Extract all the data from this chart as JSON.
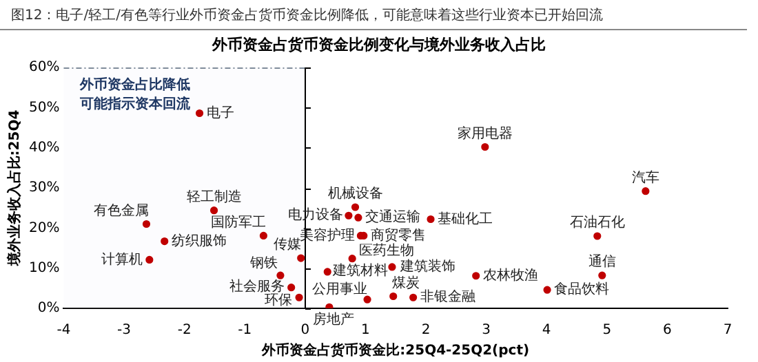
{
  "chart_data": {
    "type": "scatter",
    "title": "图12：电子/轻工/有色等行业外币资金占货币资金比例降低，可能意味着这些行业资本已开始回流",
    "subtitle": "外币资金占货币资金比例变化与境外业务收入占比",
    "xlabel": "外币资金占货币资金比:25Q4-25Q2(pct)",
    "ylabel": "境外业务收入占比:25Q4",
    "xlim": [
      -4,
      7
    ],
    "xticks": [
      -4,
      -3,
      -2,
      -1,
      0,
      1,
      2,
      3,
      4,
      5,
      6,
      7
    ],
    "ylim": [
      0,
      60
    ],
    "yticks": [
      {
        "value": 0,
        "label": "0%"
      },
      {
        "value": 10,
        "label": "10%"
      },
      {
        "value": 20,
        "label": "20%"
      },
      {
        "value": 30,
        "label": "30%"
      },
      {
        "value": 40,
        "label": "40%"
      },
      {
        "value": 50,
        "label": "50%"
      },
      {
        "value": 60,
        "label": "60%"
      }
    ],
    "grid": false,
    "legend": false,
    "marker": "circle",
    "series": [
      {
        "color": "#c00000",
        "x": [
          -1.75,
          -2.63,
          -2.33,
          -2.58,
          -1.51,
          -0.69,
          -0.07,
          -0.41,
          -0.23,
          -0.1,
          0.4,
          0.83,
          0.72,
          0.88,
          0.92,
          0.97,
          0.37,
          0.78,
          2.08,
          1.44,
          1.03,
          1.46,
          1.79,
          2.83,
          4.01,
          2.98,
          5.64,
          4.84,
          4.92
        ],
        "values": [
          48.6,
          21.0,
          16.7,
          12.1,
          24.4,
          18.1,
          12.5,
          8.2,
          5.2,
          2.7,
          0.3,
          25.2,
          23.1,
          22.6,
          18.1,
          18.1,
          9.1,
          12.4,
          22.2,
          10.3,
          2.2,
          3.0,
          2.7,
          8.1,
          4.6,
          40.2,
          29.2,
          18.0,
          8.2
        ]
      }
    ],
    "ref_lines": [
      {
        "axis": "x",
        "value": 0,
        "color": "#000000"
      }
    ],
    "bands": [
      {
        "axis": "x",
        "from": -4,
        "to": 0,
        "label": "外币资金占比降低可能指示资本回流",
        "color": "#e8edf5"
      }
    ],
    "annotations": [
      {
        "text": "电子",
        "x": -1.75,
        "y": 48.6
      },
      {
        "text": "有色金属",
        "x": -2.63,
        "y": 21.0
      },
      {
        "text": "纺织服饰",
        "x": -2.33,
        "y": 16.7
      },
      {
        "text": "计算机",
        "x": -2.58,
        "y": 12.1
      },
      {
        "text": "轻工制造",
        "x": -1.51,
        "y": 24.4
      },
      {
        "text": "国防军工",
        "x": -0.69,
        "y": 18.1
      },
      {
        "text": "传媒",
        "x": -0.07,
        "y": 12.5
      },
      {
        "text": "钢铁",
        "x": -0.41,
        "y": 8.2
      },
      {
        "text": "社会服务",
        "x": -0.23,
        "y": 5.2
      },
      {
        "text": "环保",
        "x": -0.1,
        "y": 2.7
      },
      {
        "text": "房地产",
        "x": 0.4,
        "y": 0.3
      },
      {
        "text": "机械设备",
        "x": 0.83,
        "y": 25.2
      },
      {
        "text": "电力设备",
        "x": 0.72,
        "y": 23.1
      },
      {
        "text": "交通运输",
        "x": 0.88,
        "y": 22.6
      },
      {
        "text": "美容护理",
        "x": 0.92,
        "y": 18.1
      },
      {
        "text": "商贸零售",
        "x": 0.97,
        "y": 18.1
      },
      {
        "text": "建筑材料",
        "x": 0.37,
        "y": 9.1
      },
      {
        "text": "医药生物",
        "x": 0.78,
        "y": 12.4
      },
      {
        "text": "基础化工",
        "x": 2.08,
        "y": 22.2
      },
      {
        "text": "建筑装饰",
        "x": 1.44,
        "y": 10.3
      },
      {
        "text": "公用事业",
        "x": 1.03,
        "y": 2.2
      },
      {
        "text": "煤炭",
        "x": 1.46,
        "y": 3.0
      },
      {
        "text": "非银金融",
        "x": 1.79,
        "y": 2.7
      },
      {
        "text": "农林牧渔",
        "x": 2.83,
        "y": 8.1
      },
      {
        "text": "食品饮料",
        "x": 4.01,
        "y": 4.6
      },
      {
        "text": "家用电器",
        "x": 2.98,
        "y": 40.2
      },
      {
        "text": "汽车",
        "x": 5.64,
        "y": 29.2
      },
      {
        "text": "石油石化",
        "x": 4.84,
        "y": 18.0
      },
      {
        "text": "通信",
        "x": 4.92,
        "y": 8.2
      }
    ]
  }
}
